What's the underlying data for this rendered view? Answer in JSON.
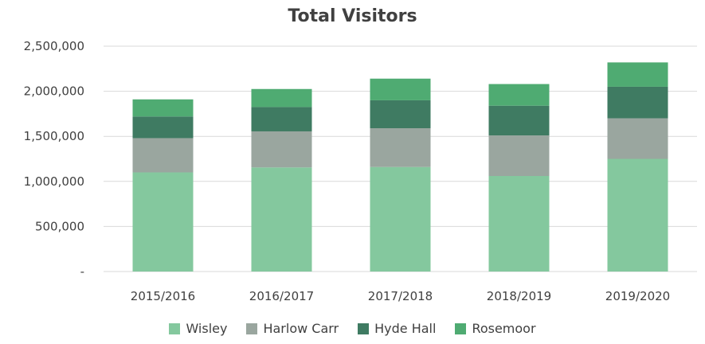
{
  "chart_data": {
    "type": "bar",
    "stacked": true,
    "title": "Total Visitors",
    "categories": [
      "2015/2016",
      "2016/2017",
      "2017/2018",
      "2018/2019",
      "2019/2020"
    ],
    "series": [
      {
        "name": "Wisley",
        "color": "#84c89e",
        "values": [
          1100000,
          1155000,
          1160000,
          1060000,
          1250000
        ]
      },
      {
        "name": "Harlow Carr",
        "color": "#9aa69f",
        "values": [
          380000,
          400000,
          430000,
          450000,
          450000
        ]
      },
      {
        "name": "Hyde Hall",
        "color": "#3f7b62",
        "values": [
          240000,
          270000,
          310000,
          330000,
          350000
        ]
      },
      {
        "name": "Rosemoor",
        "color": "#4fab72",
        "values": [
          190000,
          200000,
          240000,
          240000,
          270000
        ]
      }
    ],
    "yticks": [
      "-",
      "500,000",
      "1,000,000",
      "1,500,000",
      "2,000,000",
      "2,500,000"
    ],
    "ylim": [
      0,
      2500000
    ],
    "grid": true,
    "legend_position": "bottom"
  }
}
